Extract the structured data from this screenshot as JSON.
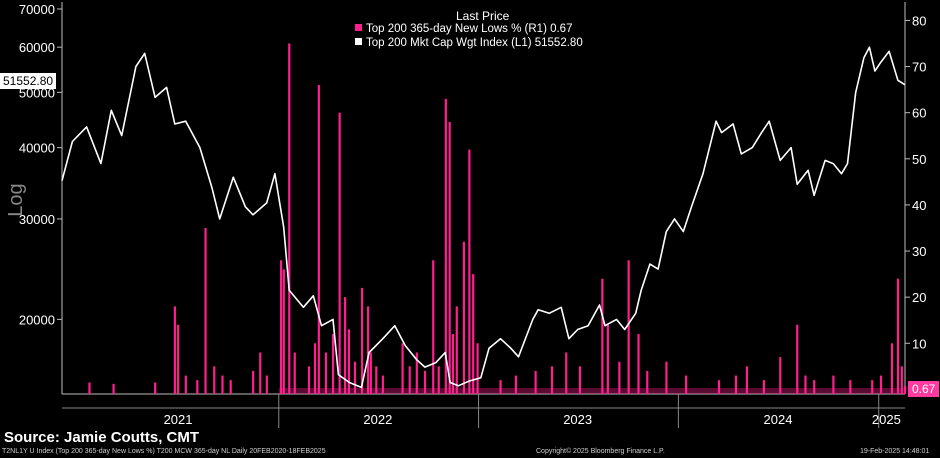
{
  "legend": {
    "title": "Last Price",
    "r1": "Top 200 365-day New Lows % (R1) 0.67",
    "l1": "Top 200 Mkt Cap Wgt Index (L1)    51552.80"
  },
  "badges": {
    "left": "51552.80",
    "right": "0.67"
  },
  "left_axis_label": "Log",
  "source": "Source: Jamie Coutts, CMT",
  "footer": {
    "left": "T2NL1Y U Index (Top 200 365-day New Lows %) T200 MCW 365-day NL  Daily 20FEB2020-18FEB2025",
    "center": "Copyright© 2025 Bloomberg Finance L.P.",
    "right": "19-Feb-2025 14:48:01"
  },
  "colors": {
    "index": "#ffffff",
    "lows": "#ff1f8e",
    "background": "#000000",
    "badge_lows": "#ff3aa0"
  },
  "chart_data": {
    "type": "line",
    "x_range": [
      "2020-12-01",
      "2025-02-18"
    ],
    "x_tick_labels": [
      {
        "label": "2021",
        "at": "2021-07-01"
      },
      {
        "label": "2022",
        "at": "2022-07-01"
      },
      {
        "label": "2023",
        "at": "2023-07-01"
      },
      {
        "label": "2024",
        "at": "2024-07-01"
      },
      {
        "label": "2025",
        "at": "2025-01-15"
      }
    ],
    "x_separators": [
      "2022-01-01",
      "2023-01-01",
      "2024-01-01",
      "2025-01-01"
    ],
    "y_left": {
      "scale": "log",
      "label": "Log",
      "ticks": [
        20000,
        30000,
        40000,
        50000,
        60000,
        70000
      ],
      "range": [
        14800,
        72000
      ]
    },
    "y_right": {
      "scale": "linear",
      "ticks": [
        10,
        20,
        30,
        40,
        50,
        60,
        70,
        80
      ],
      "range": [
        -1,
        84
      ]
    },
    "grid": false,
    "legend_position": "top-center",
    "series": [
      {
        "name": "Top 200 Mkt Cap Wgt Index (L1)",
        "axis": "left",
        "last": 51552.8,
        "points": [
          [
            "2020-12-01",
            35000
          ],
          [
            "2020-12-20",
            41000
          ],
          [
            "2021-01-15",
            43500
          ],
          [
            "2021-02-10",
            37500
          ],
          [
            "2021-03-01",
            46500
          ],
          [
            "2021-03-20",
            42000
          ],
          [
            "2021-04-15",
            55500
          ],
          [
            "2021-05-01",
            58500
          ],
          [
            "2021-05-20",
            49000
          ],
          [
            "2021-06-10",
            51000
          ],
          [
            "2021-06-25",
            44000
          ],
          [
            "2021-07-15",
            44500
          ],
          [
            "2021-08-10",
            40000
          ],
          [
            "2021-09-01",
            34000
          ],
          [
            "2021-09-15",
            30000
          ],
          [
            "2021-10-10",
            35500
          ],
          [
            "2021-11-01",
            31500
          ],
          [
            "2021-11-15",
            30500
          ],
          [
            "2021-12-10",
            32000
          ],
          [
            "2021-12-25",
            36000
          ],
          [
            "2022-01-10",
            29000
          ],
          [
            "2022-01-20",
            22500
          ],
          [
            "2022-02-15",
            21000
          ],
          [
            "2022-03-05",
            22000
          ],
          [
            "2022-03-20",
            19500
          ],
          [
            "2022-04-10",
            20000
          ],
          [
            "2022-04-20",
            16000
          ],
          [
            "2022-05-10",
            15500
          ],
          [
            "2022-06-01",
            15200
          ],
          [
            "2022-06-15",
            17500
          ],
          [
            "2022-07-10",
            18500
          ],
          [
            "2022-08-01",
            19500
          ],
          [
            "2022-08-20",
            18000
          ],
          [
            "2022-09-10",
            17000
          ],
          [
            "2022-09-25",
            16500
          ],
          [
            "2022-10-15",
            16800
          ],
          [
            "2022-11-01",
            17500
          ],
          [
            "2022-11-10",
            15500
          ],
          [
            "2022-11-25",
            15300
          ],
          [
            "2022-12-15",
            15600
          ],
          [
            "2023-01-05",
            15800
          ],
          [
            "2023-01-20",
            17800
          ],
          [
            "2023-02-10",
            18500
          ],
          [
            "2023-03-01",
            17800
          ],
          [
            "2023-03-15",
            17200
          ],
          [
            "2023-04-10",
            20000
          ],
          [
            "2023-04-20",
            20800
          ],
          [
            "2023-05-10",
            20500
          ],
          [
            "2023-06-01",
            21000
          ],
          [
            "2023-06-15",
            18500
          ],
          [
            "2023-07-01",
            19200
          ],
          [
            "2023-07-20",
            19500
          ],
          [
            "2023-08-10",
            21200
          ],
          [
            "2023-08-20",
            19500
          ],
          [
            "2023-09-10",
            20000
          ],
          [
            "2023-09-25",
            19200
          ],
          [
            "2023-10-15",
            20500
          ],
          [
            "2023-10-25",
            22500
          ],
          [
            "2023-11-10",
            25000
          ],
          [
            "2023-11-25",
            24500
          ],
          [
            "2023-12-10",
            28500
          ],
          [
            "2023-12-25",
            30000
          ],
          [
            "2024-01-10",
            28500
          ],
          [
            "2024-01-25",
            31500
          ],
          [
            "2024-02-15",
            36000
          ],
          [
            "2024-03-10",
            44500
          ],
          [
            "2024-03-20",
            42500
          ],
          [
            "2024-04-10",
            44000
          ],
          [
            "2024-04-25",
            39000
          ],
          [
            "2024-05-15",
            40000
          ],
          [
            "2024-06-01",
            42500
          ],
          [
            "2024-06-15",
            44500
          ],
          [
            "2024-07-05",
            38000
          ],
          [
            "2024-07-25",
            40000
          ],
          [
            "2024-08-05",
            34500
          ],
          [
            "2024-08-25",
            36500
          ],
          [
            "2024-09-05",
            33000
          ],
          [
            "2024-09-25",
            38000
          ],
          [
            "2024-10-10",
            37500
          ],
          [
            "2024-10-25",
            36000
          ],
          [
            "2024-11-05",
            37500
          ],
          [
            "2024-11-20",
            50000
          ],
          [
            "2024-12-05",
            57500
          ],
          [
            "2024-12-15",
            60000
          ],
          [
            "2024-12-25",
            54500
          ],
          [
            "2025-01-05",
            56500
          ],
          [
            "2025-01-20",
            59000
          ],
          [
            "2025-02-05",
            52500
          ],
          [
            "2025-02-18",
            51552.8
          ]
        ]
      },
      {
        "name": "Top 200 365-day New Lows % (R1)",
        "axis": "right",
        "style": "spikes",
        "last": 0.67,
        "points": [
          [
            "2021-01-20",
            1.5
          ],
          [
            "2021-03-05",
            1.2
          ],
          [
            "2021-05-20",
            1.5
          ],
          [
            "2021-06-25",
            18
          ],
          [
            "2021-07-01",
            14
          ],
          [
            "2021-07-15",
            3
          ],
          [
            "2021-08-05",
            2
          ],
          [
            "2021-08-20",
            35
          ],
          [
            "2021-09-05",
            5
          ],
          [
            "2021-09-20",
            3
          ],
          [
            "2021-10-05",
            2
          ],
          [
            "2021-11-15",
            4
          ],
          [
            "2021-11-28",
            8
          ],
          [
            "2021-12-10",
            3
          ],
          [
            "2022-01-05",
            28
          ],
          [
            "2022-01-10",
            26
          ],
          [
            "2022-01-20",
            75
          ],
          [
            "2022-01-30",
            8
          ],
          [
            "2022-02-25",
            5
          ],
          [
            "2022-03-08",
            10
          ],
          [
            "2022-03-15",
            66
          ],
          [
            "2022-03-28",
            8
          ],
          [
            "2022-04-10",
            12
          ],
          [
            "2022-04-22",
            60
          ],
          [
            "2022-05-02",
            20
          ],
          [
            "2022-05-09",
            13
          ],
          [
            "2022-05-20",
            6
          ],
          [
            "2022-06-02",
            22
          ],
          [
            "2022-06-13",
            18
          ],
          [
            "2022-06-18",
            8
          ],
          [
            "2022-06-28",
            5
          ],
          [
            "2022-07-10",
            3
          ],
          [
            "2022-08-15",
            10
          ],
          [
            "2022-08-28",
            5
          ],
          [
            "2022-09-10",
            8
          ],
          [
            "2022-09-25",
            4
          ],
          [
            "2022-10-10",
            28
          ],
          [
            "2022-10-20",
            5
          ],
          [
            "2022-11-02",
            63
          ],
          [
            "2022-11-09",
            58
          ],
          [
            "2022-11-15",
            12
          ],
          [
            "2022-11-22",
            18
          ],
          [
            "2022-12-05",
            32
          ],
          [
            "2022-12-15",
            52
          ],
          [
            "2022-12-22",
            25
          ],
          [
            "2022-12-30",
            10
          ],
          [
            "2023-02-10",
            2
          ],
          [
            "2023-03-10",
            3
          ],
          [
            "2023-04-15",
            4
          ],
          [
            "2023-05-15",
            5
          ],
          [
            "2023-06-10",
            8
          ],
          [
            "2023-07-05",
            5
          ],
          [
            "2023-08-15",
            24
          ],
          [
            "2023-08-25",
            14
          ],
          [
            "2023-09-15",
            6
          ],
          [
            "2023-10-02",
            28
          ],
          [
            "2023-10-20",
            12
          ],
          [
            "2023-11-05",
            4
          ],
          [
            "2023-12-10",
            6
          ],
          [
            "2024-01-15",
            3
          ],
          [
            "2024-03-15",
            2
          ],
          [
            "2024-04-15",
            3
          ],
          [
            "2024-05-05",
            5
          ],
          [
            "2024-06-05",
            2
          ],
          [
            "2024-07-05",
            7
          ],
          [
            "2024-08-05",
            14
          ],
          [
            "2024-08-20",
            3
          ],
          [
            "2024-09-05",
            2
          ],
          [
            "2024-10-10",
            3
          ],
          [
            "2024-11-10",
            2
          ],
          [
            "2024-12-20",
            2
          ],
          [
            "2025-01-05",
            3
          ],
          [
            "2025-01-25",
            10
          ],
          [
            "2025-02-05",
            24
          ],
          [
            "2025-02-12",
            5
          ],
          [
            "2025-02-18",
            0.67
          ]
        ]
      }
    ]
  }
}
